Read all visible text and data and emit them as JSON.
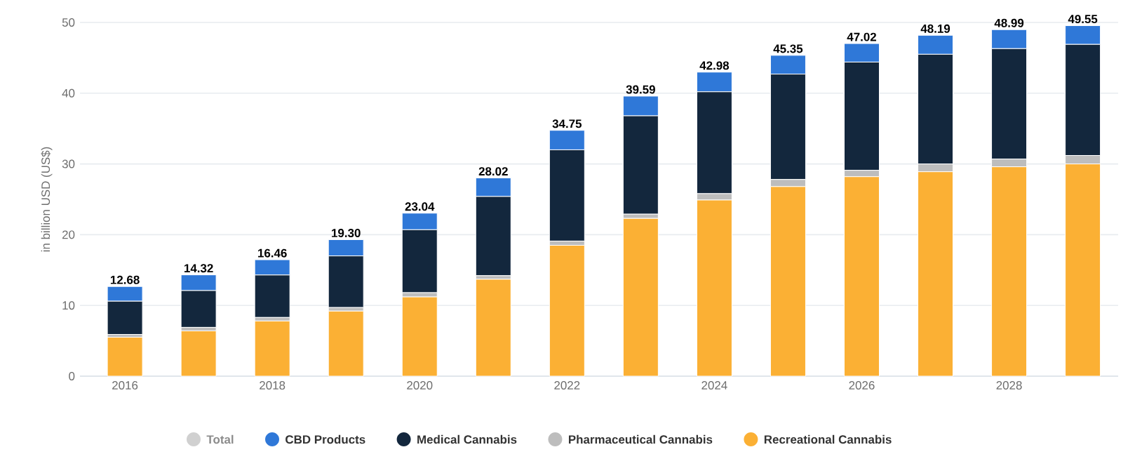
{
  "chart_data": {
    "type": "bar",
    "stacked": true,
    "ylabel": "in billion USD (US$)",
    "categories": [
      "2016",
      null,
      "2018",
      null,
      "2020",
      null,
      "2022",
      null,
      "2024",
      null,
      "2026",
      null,
      "2028",
      null
    ],
    "series": [
      {
        "name": "Recreational Cannabis",
        "color": "#fbb034",
        "values": [
          5.5,
          6.4,
          7.8,
          9.2,
          11.2,
          13.7,
          18.5,
          22.3,
          24.9,
          26.8,
          28.2,
          28.9,
          29.6,
          30.0
        ]
      },
      {
        "name": "Pharmaceutical Cannabis",
        "color": "#bdbdbd",
        "values": [
          0.4,
          0.5,
          0.5,
          0.5,
          0.6,
          0.5,
          0.6,
          0.6,
          0.9,
          1.0,
          0.9,
          1.1,
          1.1,
          1.2
        ]
      },
      {
        "name": "Medical Cannabis",
        "color": "#13273d",
        "values": [
          4.7,
          5.2,
          6.0,
          7.3,
          8.9,
          11.2,
          12.9,
          13.9,
          14.4,
          14.9,
          15.3,
          15.5,
          15.6,
          15.7
        ]
      },
      {
        "name": "CBD Products",
        "color": "#2f78d8",
        "values": [
          2.08,
          2.22,
          2.16,
          2.3,
          2.34,
          2.62,
          2.75,
          2.79,
          2.78,
          2.65,
          2.62,
          2.69,
          2.69,
          2.65
        ]
      },
      {
        "name": "Total",
        "color": "#d0d0d0",
        "values": [
          null,
          null,
          null,
          null,
          null,
          null,
          null,
          null,
          null,
          null,
          null,
          null,
          null,
          null
        ]
      }
    ],
    "totals": [
      "12.68",
      "14.32",
      "16.46",
      "19.30",
      "23.04",
      "28.02",
      "34.75",
      "39.59",
      "42.98",
      "45.35",
      "47.02",
      "48.19",
      "48.99",
      "49.55"
    ],
    "ylim": [
      0,
      50
    ],
    "yticks": [
      0,
      10,
      20,
      30,
      40,
      50
    ],
    "grid": "y",
    "legend": "bottom"
  }
}
